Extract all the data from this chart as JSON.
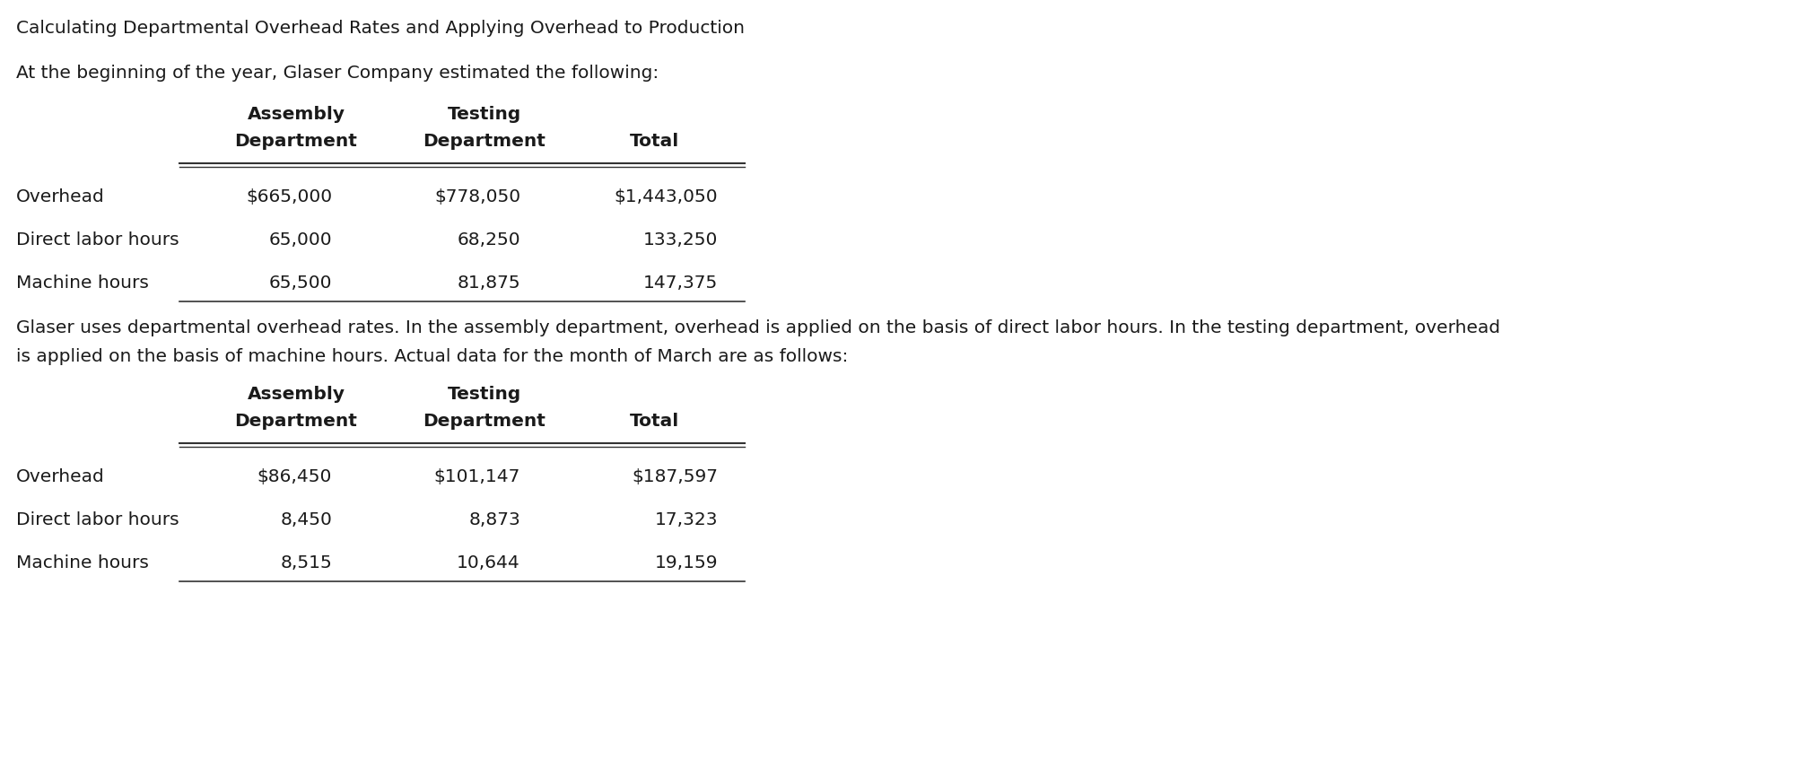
{
  "title": "Calculating Departmental Overhead Rates and Applying Overhead to Production",
  "intro_text": "At the beginning of the year, Glaser Company estimated the following:",
  "middle_text_line1": "Glaser uses departmental overhead rates. In the assembly department, overhead is applied on the basis of direct labor hours. In the testing department, overhead",
  "middle_text_line2": "is applied on the basis of machine hours. Actual data for the month of March are as follows:",
  "table1": {
    "col_headers_line1": [
      "Assembly",
      "Testing",
      ""
    ],
    "col_headers_line2": [
      "Department",
      "Department",
      "Total"
    ],
    "rows": [
      [
        "Overhead",
        "$665,000",
        "$778,050",
        "$1,443,050"
      ],
      [
        "Direct labor hours",
        "65,000",
        "68,250",
        "133,250"
      ],
      [
        "Machine hours",
        "65,500",
        "81,875",
        "147,375"
      ]
    ]
  },
  "table2": {
    "col_headers_line1": [
      "Assembly",
      "Testing",
      ""
    ],
    "col_headers_line2": [
      "Department",
      "Department",
      "Total"
    ],
    "rows": [
      [
        "Overhead",
        "$86,450",
        "$101,147",
        "$187,597"
      ],
      [
        "Direct labor hours",
        "8,450",
        "8,873",
        "17,323"
      ],
      [
        "Machine hours",
        "8,515",
        "10,644",
        "19,159"
      ]
    ]
  },
  "background_color": "#ffffff",
  "text_color": "#1a1a1a",
  "font_size": 14.5,
  "title_font_size": 14.5
}
